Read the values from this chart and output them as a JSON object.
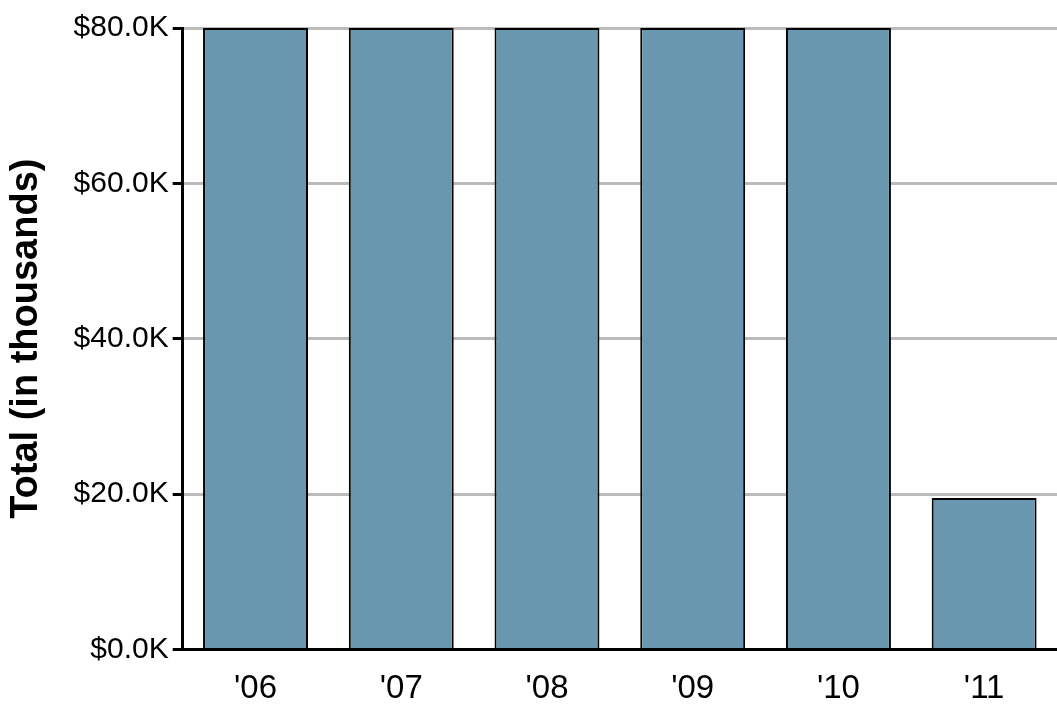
{
  "chart_data": {
    "type": "bar",
    "ylabel": "Total (in thousands)",
    "categories": [
      "'06",
      "'07",
      "'08",
      "'09",
      "'10",
      "'11"
    ],
    "values": [
      80,
      80,
      80,
      80,
      80,
      19.5
    ],
    "color": "#6a97b0",
    "ylim": [
      0,
      80
    ],
    "yticks": [
      {
        "value": 0,
        "label": "$0.0K"
      },
      {
        "value": 20,
        "label": "$20.0K"
      },
      {
        "value": 40,
        "label": "$40.0K"
      },
      {
        "value": 60,
        "label": "$60.0K"
      },
      {
        "value": 80,
        "label": "$80.0K"
      }
    ],
    "grid": "y",
    "legend": false
  }
}
